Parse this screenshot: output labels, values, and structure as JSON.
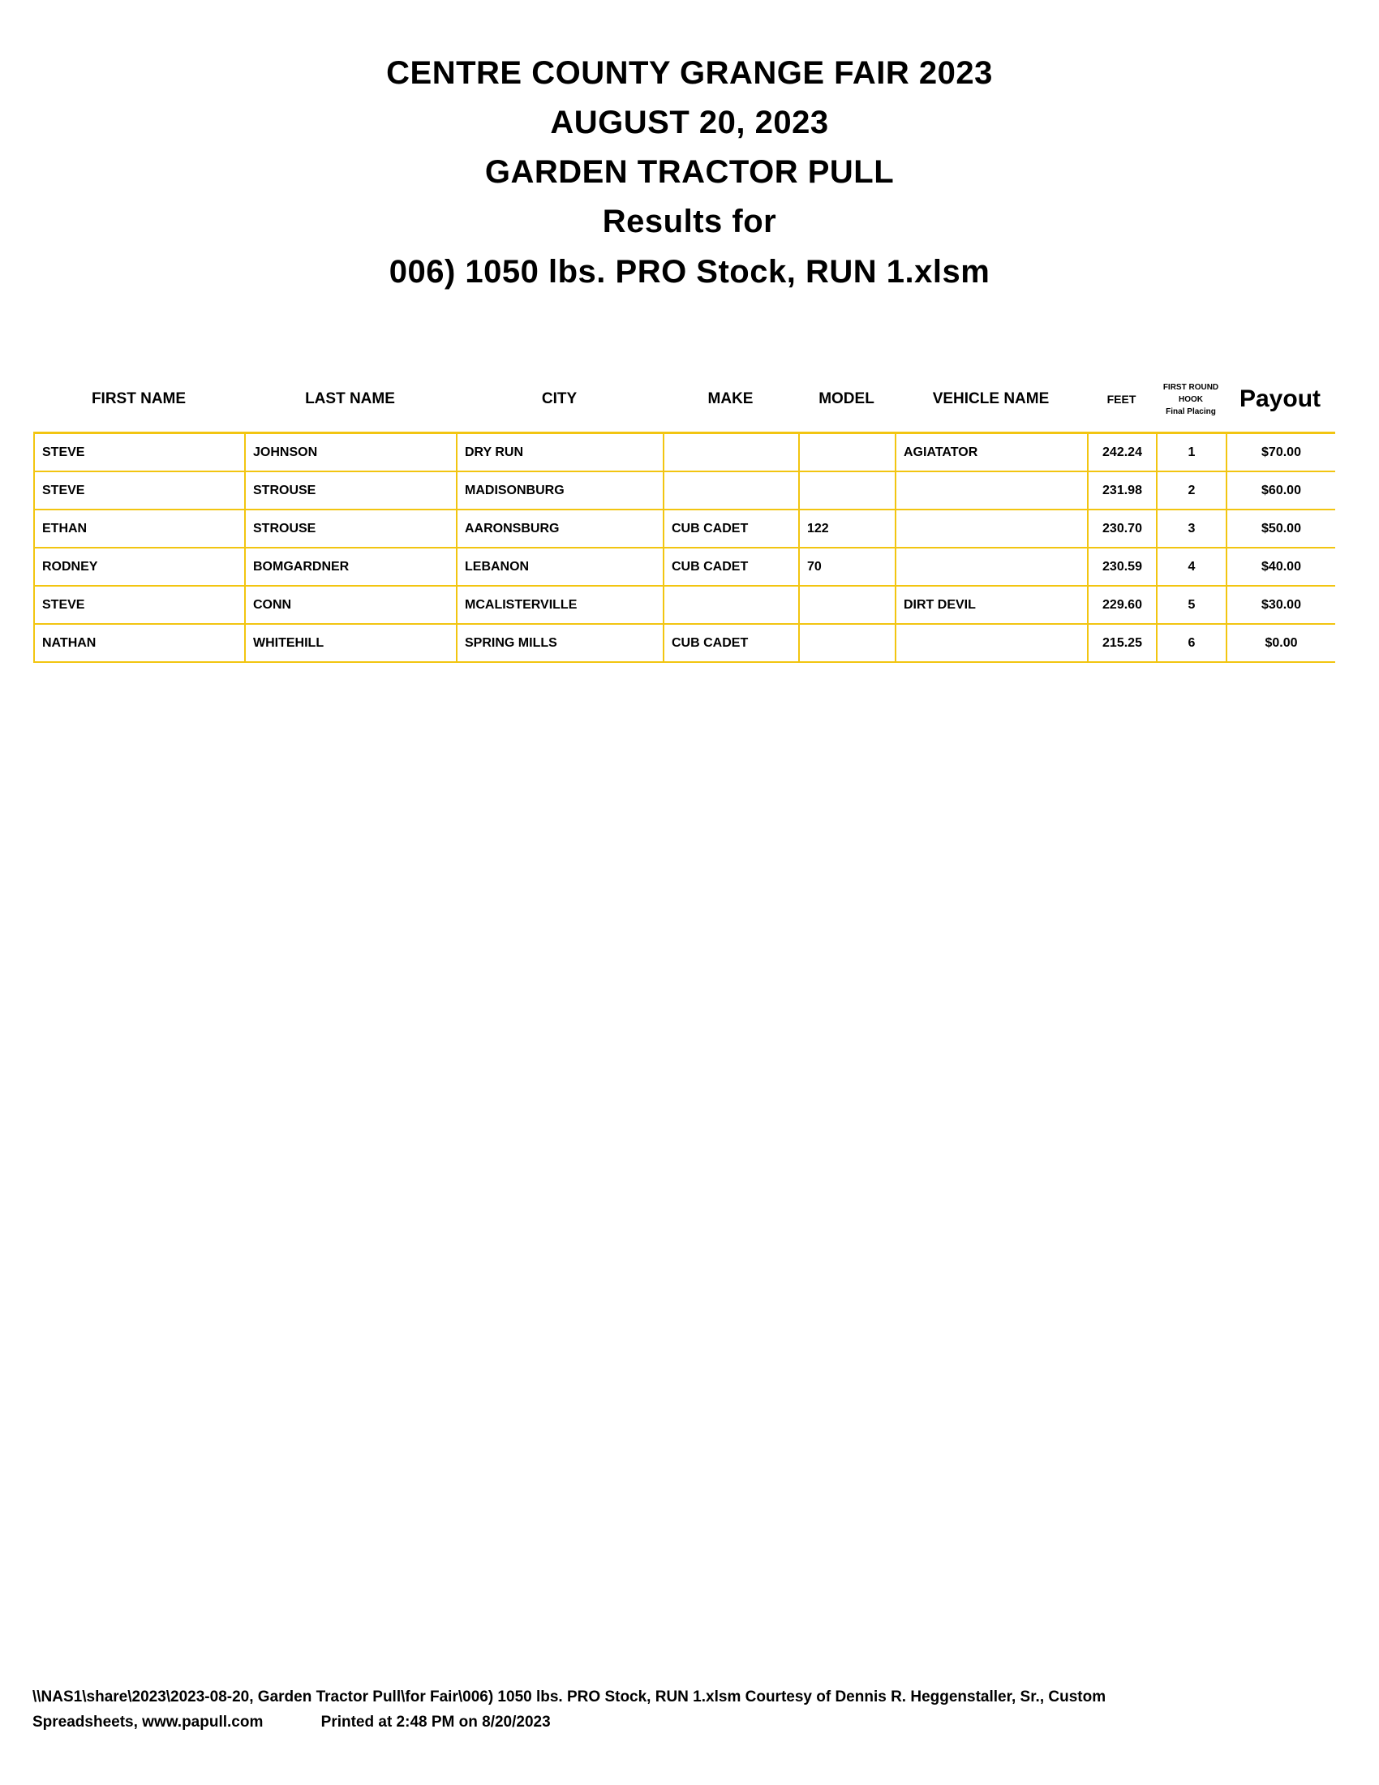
{
  "titles": [
    "CENTRE COUNTY GRANGE FAIR 2023",
    "AUGUST 20, 2023",
    "GARDEN TRACTOR PULL",
    "Results for",
    "006) 1050 lbs. PRO Stock, RUN 1.xlsm"
  ],
  "headers": {
    "first_name": "FIRST NAME",
    "last_name": "LAST NAME",
    "city": "CITY",
    "make": "MAKE",
    "model": "MODEL",
    "vehicle_name": "VEHICLE NAME",
    "feet": "FEET",
    "placing": [
      "FIRST ROUND",
      "HOOK",
      "Final Placing"
    ],
    "payout": "Payout"
  },
  "rows": [
    [
      "STEVE",
      "JOHNSON",
      "DRY RUN",
      "",
      "",
      "AGIATATOR",
      "242.24",
      "1",
      "$70.00"
    ],
    [
      "STEVE",
      "STROUSE",
      "MADISONBURG",
      "",
      "",
      "",
      "231.98",
      "2",
      "$60.00"
    ],
    [
      "ETHAN",
      "STROUSE",
      "AARONSBURG",
      "CUB CADET",
      "122",
      "",
      "230.70",
      "3",
      "$50.00"
    ],
    [
      "RODNEY",
      "BOMGARDNER",
      "LEBANON",
      "CUB CADET",
      "70",
      "",
      "230.59",
      "4",
      "$40.00"
    ],
    [
      "STEVE",
      "CONN",
      "MCALISTERVILLE",
      "",
      "",
      "DIRT DEVIL",
      "229.60",
      "5",
      "$30.00"
    ],
    [
      "NATHAN",
      "WHITEHILL",
      "SPRING MILLS",
      "CUB CADET",
      "",
      "",
      "215.25",
      "6",
      "$0.00"
    ]
  ],
  "footer": {
    "line1": "\\\\NAS1\\share\\2023\\2023-08-20, Garden Tractor Pull\\for Fair\\006) 1050 lbs. PRO Stock, RUN 1.xlsm  Courtesy of Dennis R. Heggenstaller, Sr., Custom",
    "line2_left": "Spreadsheets, www.papull.com",
    "line2_right": "Printed at 2:48 PM on 8/20/2023"
  },
  "colors": {
    "grid": "#f2c511"
  }
}
